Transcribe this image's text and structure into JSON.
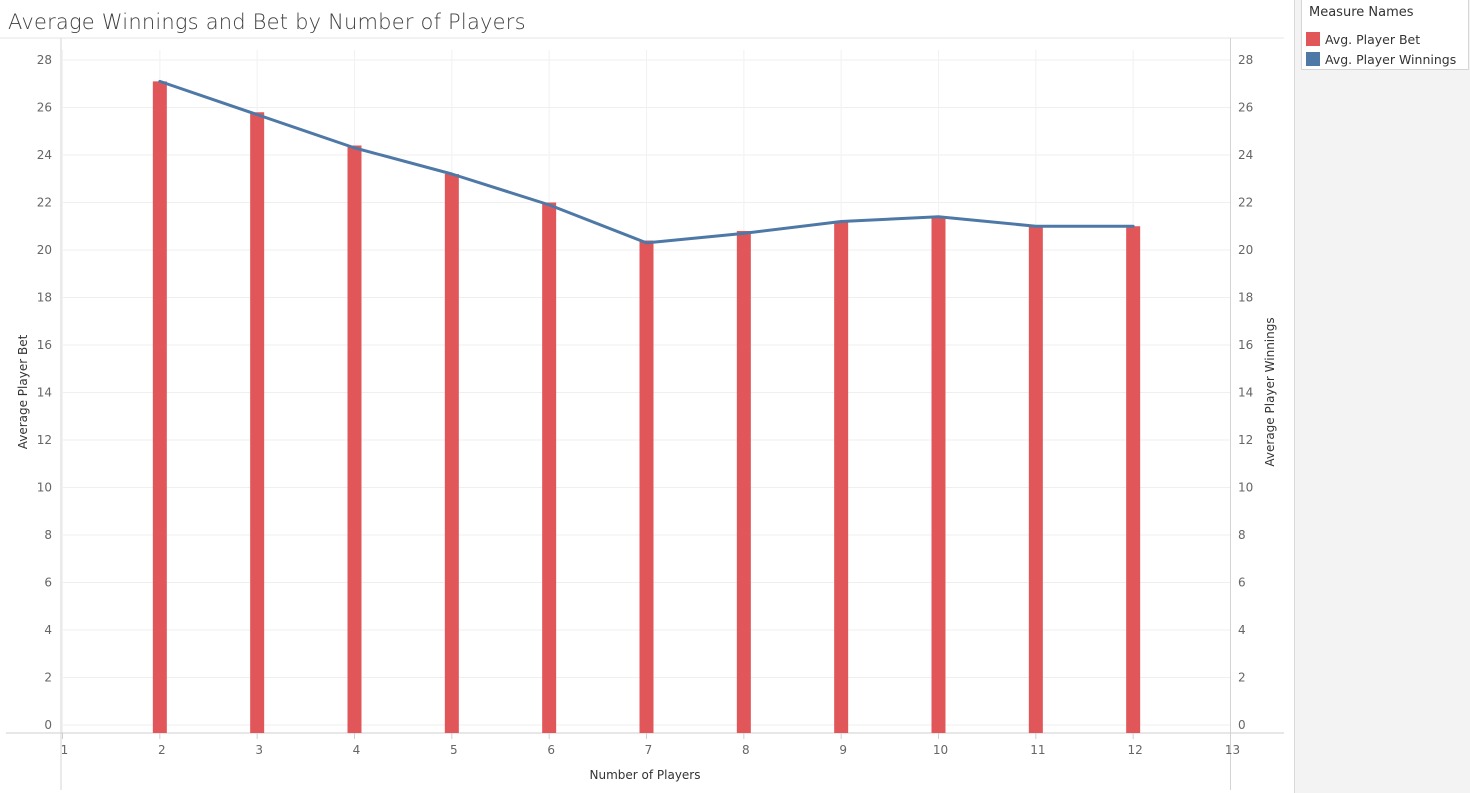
{
  "title": "Average Winnings and Bet by Number of Players",
  "legend": {
    "title": "Measure Names",
    "items": [
      {
        "label": "Avg. Player Bet",
        "color": "#e15759"
      },
      {
        "label": "Avg. Player Winnings",
        "color": "#4e79a7"
      }
    ]
  },
  "chart_data": {
    "type": "bar",
    "title": "Average Winnings and Bet by Number of Players",
    "xlabel": "Number of Players",
    "ylabel": "Average Player Bet",
    "y2label": "Average Player Winnings",
    "xlim": [
      1,
      13
    ],
    "xticks": [
      1,
      2,
      3,
      4,
      5,
      6,
      7,
      8,
      9,
      10,
      11,
      12,
      13
    ],
    "ylim": [
      0,
      28
    ],
    "yticks": [
      0,
      2,
      4,
      6,
      8,
      10,
      12,
      14,
      16,
      18,
      20,
      22,
      24,
      26,
      28
    ],
    "y2ticks": [
      0,
      2,
      4,
      6,
      8,
      10,
      12,
      14,
      16,
      18,
      20,
      22,
      24,
      26,
      28
    ],
    "grid": true,
    "x": [
      2,
      3,
      4,
      5,
      6,
      7,
      8,
      9,
      10,
      11,
      12
    ],
    "series": [
      {
        "name": "Avg. Player Bet",
        "type": "bar",
        "axis": "left",
        "color": "#e15759",
        "values": [
          27.1,
          25.8,
          24.4,
          23.2,
          22.0,
          20.4,
          20.8,
          21.2,
          21.4,
          21.0,
          21.0
        ]
      },
      {
        "name": "Avg. Player Winnings",
        "type": "line",
        "axis": "right",
        "color": "#4e79a7",
        "values": [
          27.1,
          25.7,
          24.3,
          23.2,
          21.9,
          20.3,
          20.7,
          21.2,
          21.4,
          21.0,
          21.0
        ]
      }
    ]
  }
}
